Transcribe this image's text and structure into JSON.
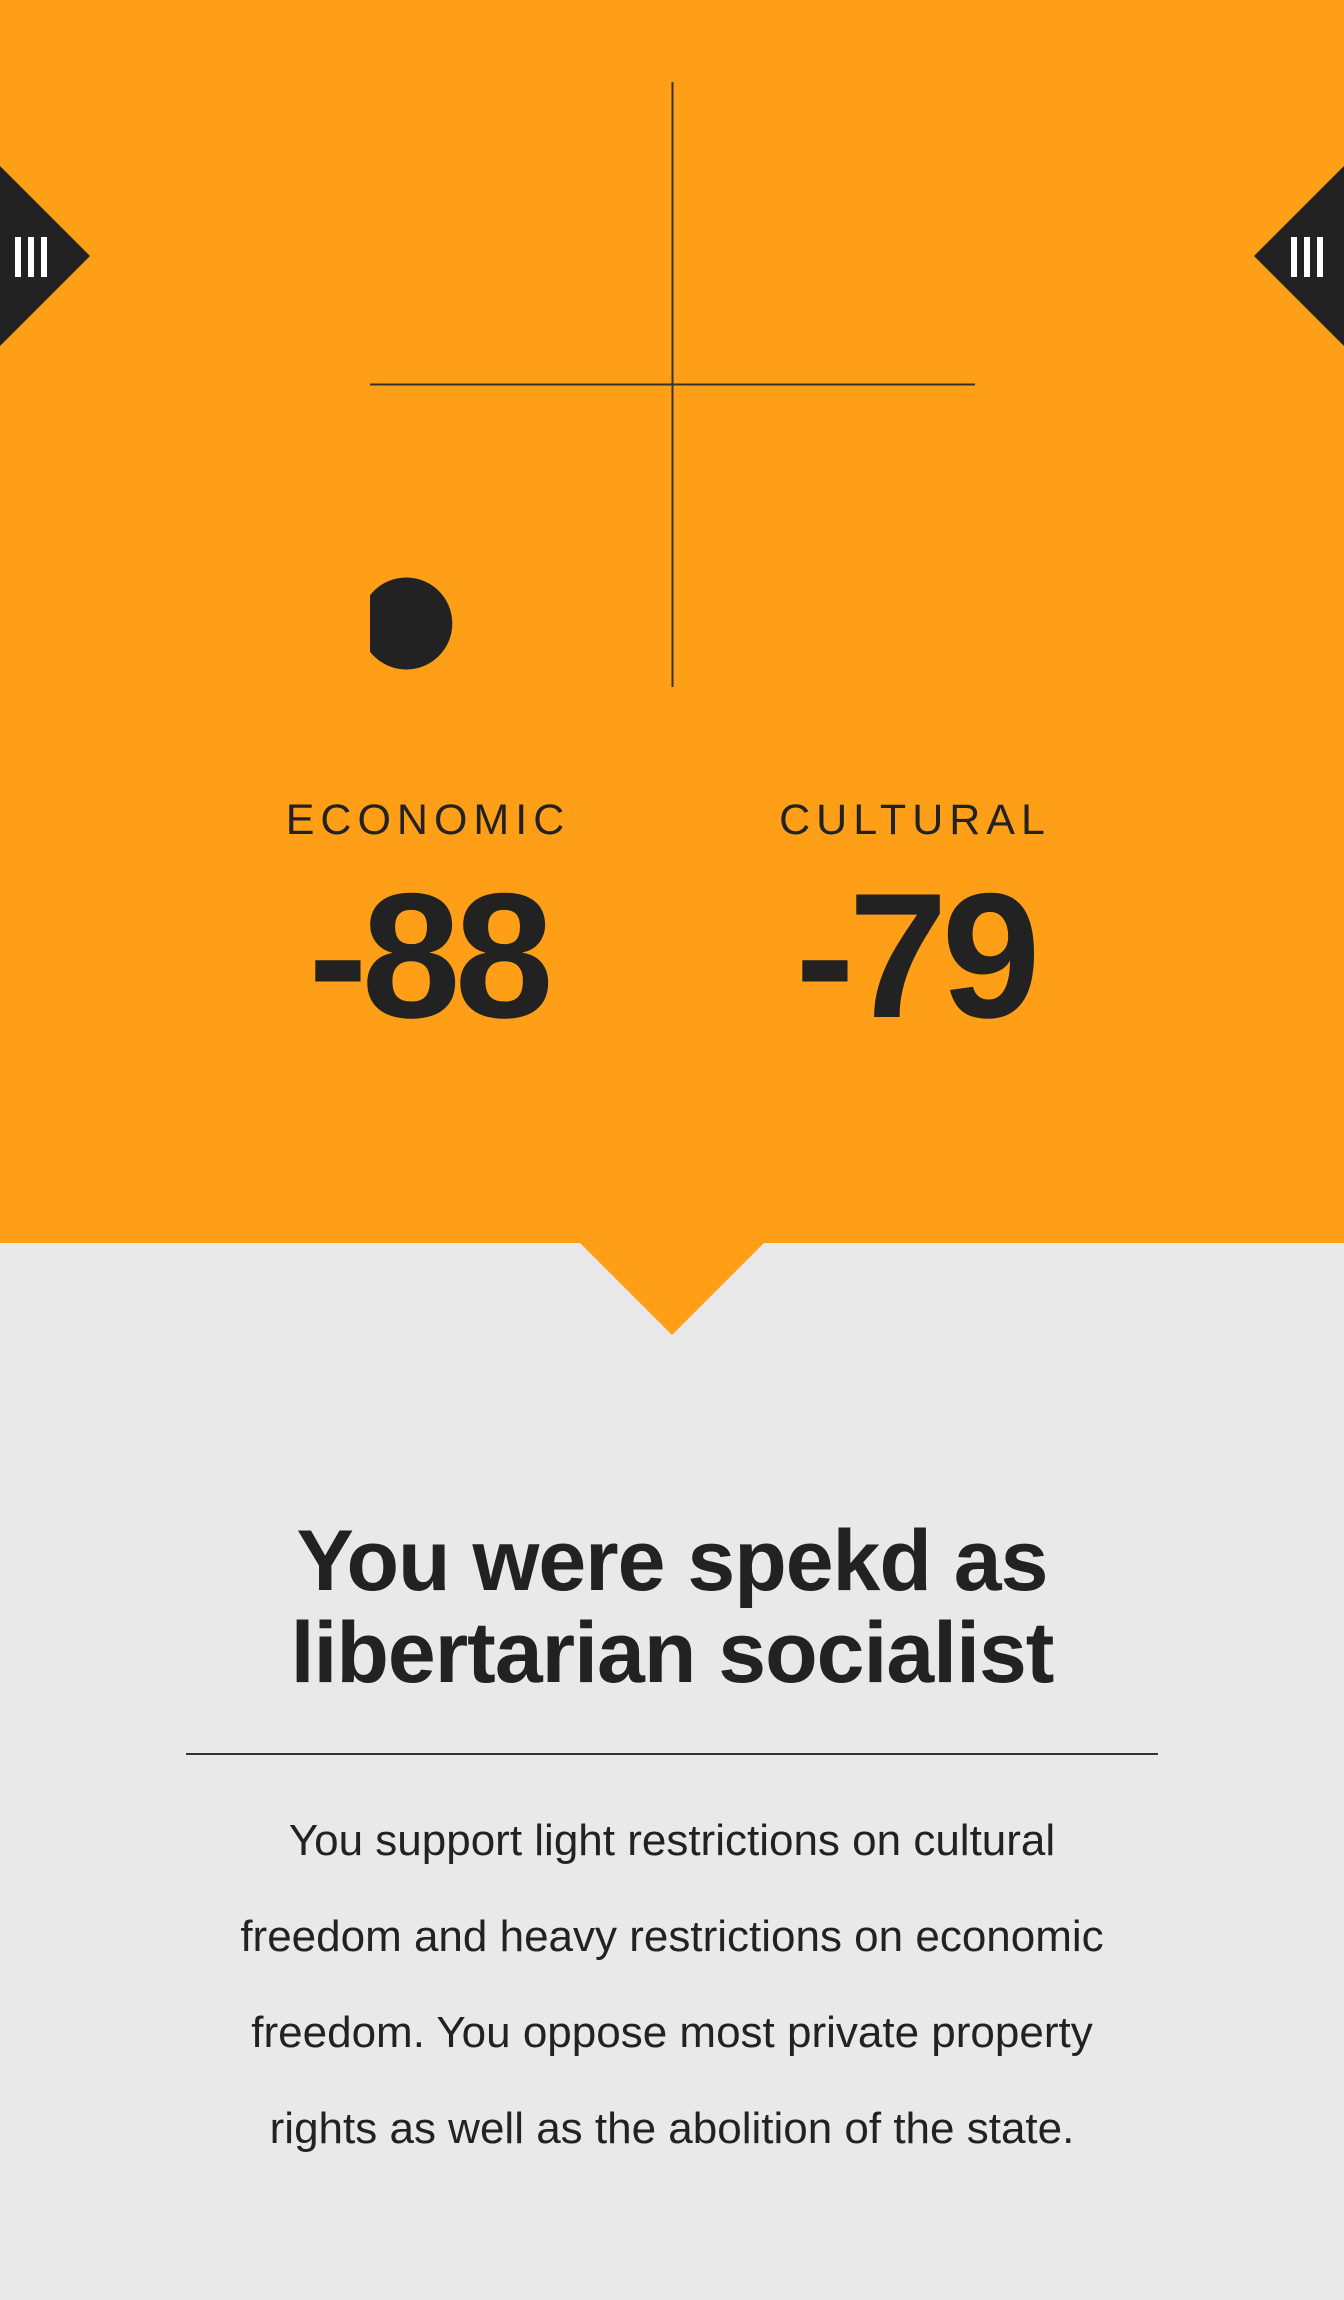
{
  "nav": {
    "left_icon": "menu-bars-icon",
    "right_icon": "menu-bars-icon"
  },
  "scores": {
    "economic": {
      "label": "ECONOMIC",
      "value": "-88"
    },
    "cultural": {
      "label": "CULTURAL",
      "value": "-79"
    }
  },
  "chart_data": {
    "type": "scatter",
    "x": [
      -88
    ],
    "y": [
      -79
    ],
    "xlim": [
      -100,
      100
    ],
    "ylim": [
      -100,
      100
    ],
    "grid": false
  },
  "result": {
    "title": "You were spekd as libertarian socialist",
    "description": "You support light restrictions on cultural freedom and heavy restrictions on economic freedom. You oppose most private property rights as well as the abolition of the state."
  },
  "colors": {
    "accent": "#ff9f17",
    "dark": "#222222",
    "background": "#e9e9e9"
  }
}
